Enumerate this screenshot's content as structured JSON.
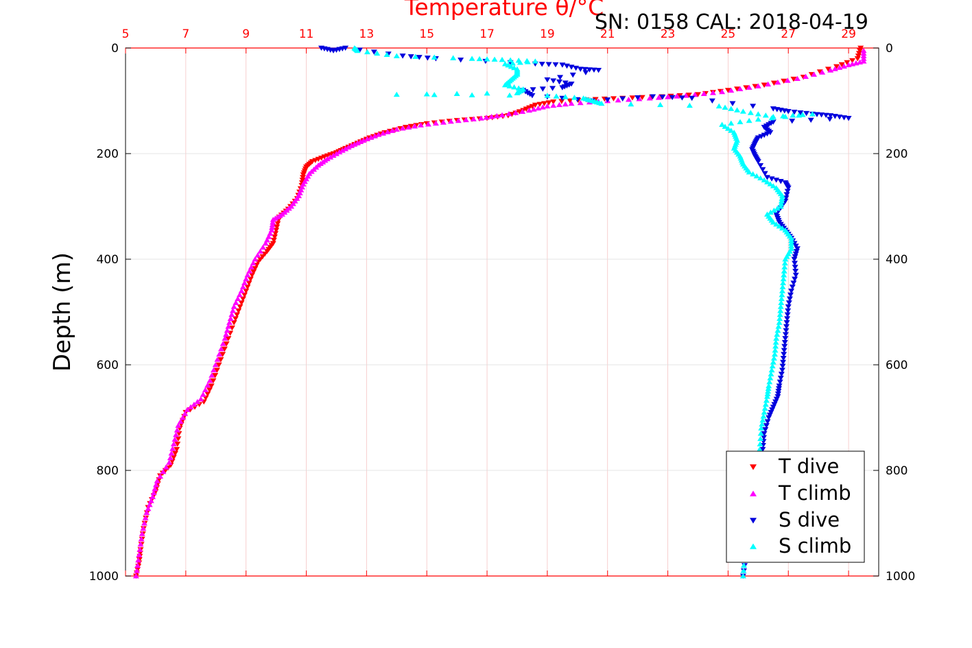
{
  "chart_data": {
    "type": "scatter",
    "title": "Temperature θ/°C",
    "annotation": "SN: 0158  CAL: 2018-04-19",
    "ylabel": "Depth (m)",
    "xlim": [
      5,
      30
    ],
    "xticks": [
      "5",
      "7",
      "9",
      "11",
      "13",
      "15",
      "17",
      "19",
      "21",
      "23",
      "25",
      "27",
      "29"
    ],
    "ylim": [
      0,
      1000
    ],
    "yreversed": true,
    "yticks": [
      "0",
      "200",
      "400",
      "600",
      "800",
      "1000"
    ],
    "grid": true,
    "legend_position": "bottom-right",
    "colors": {
      "t_dive": "#ff0000",
      "t_climb": "#ff00ff",
      "s_dive": "#0000dd",
      "s_climb": "#00ffff",
      "axis": "#ff0000"
    },
    "series": [
      {
        "name": "T dive",
        "marker": "triangle-down",
        "color": "#ff0000",
        "points": [
          [
            29.4,
            0
          ],
          [
            29.3,
            20
          ],
          [
            28.6,
            35
          ],
          [
            27.5,
            55
          ],
          [
            26.2,
            70
          ],
          [
            25.0,
            80
          ],
          [
            24.0,
            88
          ],
          [
            22.8,
            92
          ],
          [
            21.5,
            95
          ],
          [
            20.3,
            98
          ],
          [
            19.2,
            102
          ],
          [
            18.6,
            108
          ],
          [
            18.2,
            118
          ],
          [
            17.7,
            128
          ],
          [
            17.0,
            133
          ],
          [
            16.0,
            137
          ],
          [
            15.0,
            143
          ],
          [
            14.3,
            150
          ],
          [
            13.6,
            160
          ],
          [
            13.1,
            170
          ],
          [
            12.7,
            180
          ],
          [
            12.3,
            190
          ],
          [
            12.0,
            198
          ],
          [
            11.6,
            206
          ],
          [
            11.2,
            215
          ],
          [
            11.0,
            225
          ],
          [
            10.9,
            240
          ],
          [
            10.85,
            260
          ],
          [
            10.7,
            285
          ],
          [
            10.4,
            305
          ],
          [
            10.1,
            320
          ],
          [
            10.0,
            345
          ],
          [
            9.9,
            370
          ],
          [
            9.7,
            385
          ],
          [
            9.4,
            405
          ],
          [
            9.2,
            430
          ],
          [
            9.0,
            460
          ],
          [
            8.8,
            490
          ],
          [
            8.6,
            520
          ],
          [
            8.35,
            560
          ],
          [
            8.1,
            600
          ],
          [
            7.85,
            640
          ],
          [
            7.6,
            670
          ],
          [
            7.0,
            690
          ],
          [
            6.8,
            720
          ],
          [
            6.7,
            760
          ],
          [
            6.5,
            790
          ],
          [
            6.15,
            810
          ],
          [
            6.0,
            840
          ],
          [
            5.75,
            870
          ],
          [
            5.6,
            910
          ],
          [
            5.5,
            950
          ],
          [
            5.45,
            975
          ],
          [
            5.35,
            1000
          ]
        ]
      },
      {
        "name": "T climb",
        "marker": "triangle-up",
        "color": "#ff00ff",
        "points": [
          [
            29.5,
            5
          ],
          [
            29.5,
            25
          ],
          [
            29.0,
            32
          ],
          [
            28.4,
            42
          ],
          [
            27.3,
            58
          ],
          [
            26.0,
            72
          ],
          [
            24.8,
            83
          ],
          [
            23.6,
            90
          ],
          [
            22.4,
            95
          ],
          [
            21.0,
            100
          ],
          [
            19.8,
            105
          ],
          [
            19.0,
            110
          ],
          [
            18.4,
            118
          ],
          [
            17.5,
            127
          ],
          [
            16.8,
            133
          ],
          [
            15.8,
            139
          ],
          [
            14.8,
            146
          ],
          [
            14.0,
            154
          ],
          [
            13.4,
            164
          ],
          [
            12.9,
            175
          ],
          [
            12.5,
            185
          ],
          [
            12.1,
            197
          ],
          [
            11.7,
            210
          ],
          [
            11.4,
            222
          ],
          [
            11.1,
            238
          ],
          [
            10.9,
            258
          ],
          [
            10.75,
            280
          ],
          [
            10.5,
            300
          ],
          [
            10.2,
            315
          ],
          [
            9.9,
            325
          ],
          [
            9.85,
            345
          ],
          [
            9.65,
            370
          ],
          [
            9.3,
            400
          ],
          [
            9.05,
            430
          ],
          [
            8.85,
            460
          ],
          [
            8.6,
            490
          ],
          [
            8.45,
            520
          ],
          [
            8.3,
            550
          ],
          [
            8.05,
            590
          ],
          [
            7.8,
            630
          ],
          [
            7.5,
            665
          ],
          [
            7.05,
            685
          ],
          [
            6.75,
            715
          ],
          [
            6.6,
            750
          ],
          [
            6.45,
            785
          ],
          [
            6.05,
            820
          ],
          [
            5.9,
            850
          ],
          [
            5.7,
            880
          ],
          [
            5.55,
            920
          ],
          [
            5.45,
            960
          ],
          [
            5.35,
            1000
          ]
        ]
      },
      {
        "name": "S dive",
        "marker": "triangle-down",
        "color": "#0000dd",
        "points": [
          [
            11.5,
            0
          ],
          [
            11.9,
            5
          ],
          [
            12.3,
            0
          ],
          [
            14.2,
            15
          ],
          [
            15.3,
            20
          ],
          [
            18.6,
            30
          ],
          [
            19.5,
            32
          ],
          [
            20.1,
            40
          ],
          [
            20.7,
            42
          ],
          [
            19.0,
            60
          ],
          [
            19.8,
            68
          ],
          [
            19.5,
            75
          ],
          [
            18.2,
            80
          ],
          [
            18.5,
            90
          ],
          [
            20.5,
            100
          ],
          [
            22.5,
            92
          ],
          [
            23.8,
            95
          ],
          [
            26.5,
            115
          ],
          [
            27.0,
            120
          ],
          [
            27.8,
            125
          ],
          [
            28.4,
            128
          ],
          [
            29.0,
            133
          ],
          [
            26.5,
            140
          ],
          [
            26.2,
            150
          ],
          [
            26.4,
            160
          ],
          [
            26.0,
            170
          ],
          [
            25.9,
            180
          ],
          [
            25.8,
            192
          ],
          [
            25.9,
            205
          ],
          [
            26.0,
            215
          ],
          [
            26.3,
            245
          ],
          [
            26.9,
            255
          ],
          [
            27.0,
            265
          ],
          [
            26.9,
            290
          ],
          [
            26.6,
            315
          ],
          [
            26.7,
            330
          ],
          [
            26.9,
            345
          ],
          [
            27.1,
            360
          ],
          [
            27.3,
            380
          ],
          [
            27.2,
            400
          ],
          [
            27.25,
            430
          ],
          [
            27.1,
            460
          ],
          [
            27.0,
            490
          ],
          [
            26.95,
            520
          ],
          [
            26.9,
            550
          ],
          [
            26.85,
            580
          ],
          [
            26.8,
            610
          ],
          [
            26.7,
            640
          ],
          [
            26.65,
            660
          ],
          [
            26.5,
            680
          ],
          [
            26.35,
            700
          ],
          [
            26.2,
            730
          ],
          [
            26.15,
            760
          ],
          [
            26.05,
            800
          ],
          [
            25.95,
            840
          ],
          [
            25.85,
            880
          ],
          [
            25.75,
            920
          ],
          [
            25.6,
            960
          ],
          [
            25.5,
            1000
          ]
        ]
      },
      {
        "name": "S climb",
        "marker": "triangle-up",
        "color": "#00ffff",
        "points": [
          [
            12.6,
            0
          ],
          [
            12.7,
            5
          ],
          [
            14.0,
            15
          ],
          [
            16.5,
            20
          ],
          [
            17.5,
            22
          ],
          [
            18.6,
            25
          ],
          [
            17.6,
            30
          ],
          [
            18.0,
            40
          ],
          [
            18.0,
            50
          ],
          [
            17.8,
            60
          ],
          [
            17.6,
            70
          ],
          [
            18.2,
            78
          ],
          [
            18.0,
            85
          ],
          [
            14.0,
            88
          ],
          [
            19.0,
            90
          ],
          [
            20.2,
            95
          ],
          [
            20.5,
            100
          ],
          [
            20.8,
            105
          ],
          [
            24.7,
            110
          ],
          [
            25.5,
            120
          ],
          [
            26.5,
            130
          ],
          [
            27.8,
            125
          ],
          [
            26.0,
            135
          ],
          [
            24.8,
            145
          ],
          [
            25.2,
            160
          ],
          [
            25.3,
            175
          ],
          [
            25.2,
            190
          ],
          [
            25.4,
            205
          ],
          [
            25.5,
            220
          ],
          [
            25.7,
            235
          ],
          [
            26.2,
            250
          ],
          [
            26.6,
            265
          ],
          [
            26.8,
            280
          ],
          [
            26.75,
            300
          ],
          [
            26.3,
            315
          ],
          [
            26.5,
            330
          ],
          [
            26.9,
            345
          ],
          [
            27.1,
            360
          ],
          [
            27.1,
            380
          ],
          [
            26.9,
            400
          ],
          [
            26.85,
            430
          ],
          [
            26.8,
            460
          ],
          [
            26.75,
            490
          ],
          [
            26.7,
            520
          ],
          [
            26.6,
            550
          ],
          [
            26.55,
            580
          ],
          [
            26.45,
            610
          ],
          [
            26.35,
            640
          ],
          [
            26.3,
            660
          ],
          [
            26.2,
            690
          ],
          [
            26.1,
            720
          ],
          [
            26.05,
            760
          ],
          [
            25.95,
            800
          ],
          [
            25.85,
            840
          ],
          [
            25.75,
            880
          ],
          [
            25.65,
            920
          ],
          [
            25.55,
            960
          ],
          [
            25.5,
            1000
          ]
        ]
      }
    ]
  }
}
